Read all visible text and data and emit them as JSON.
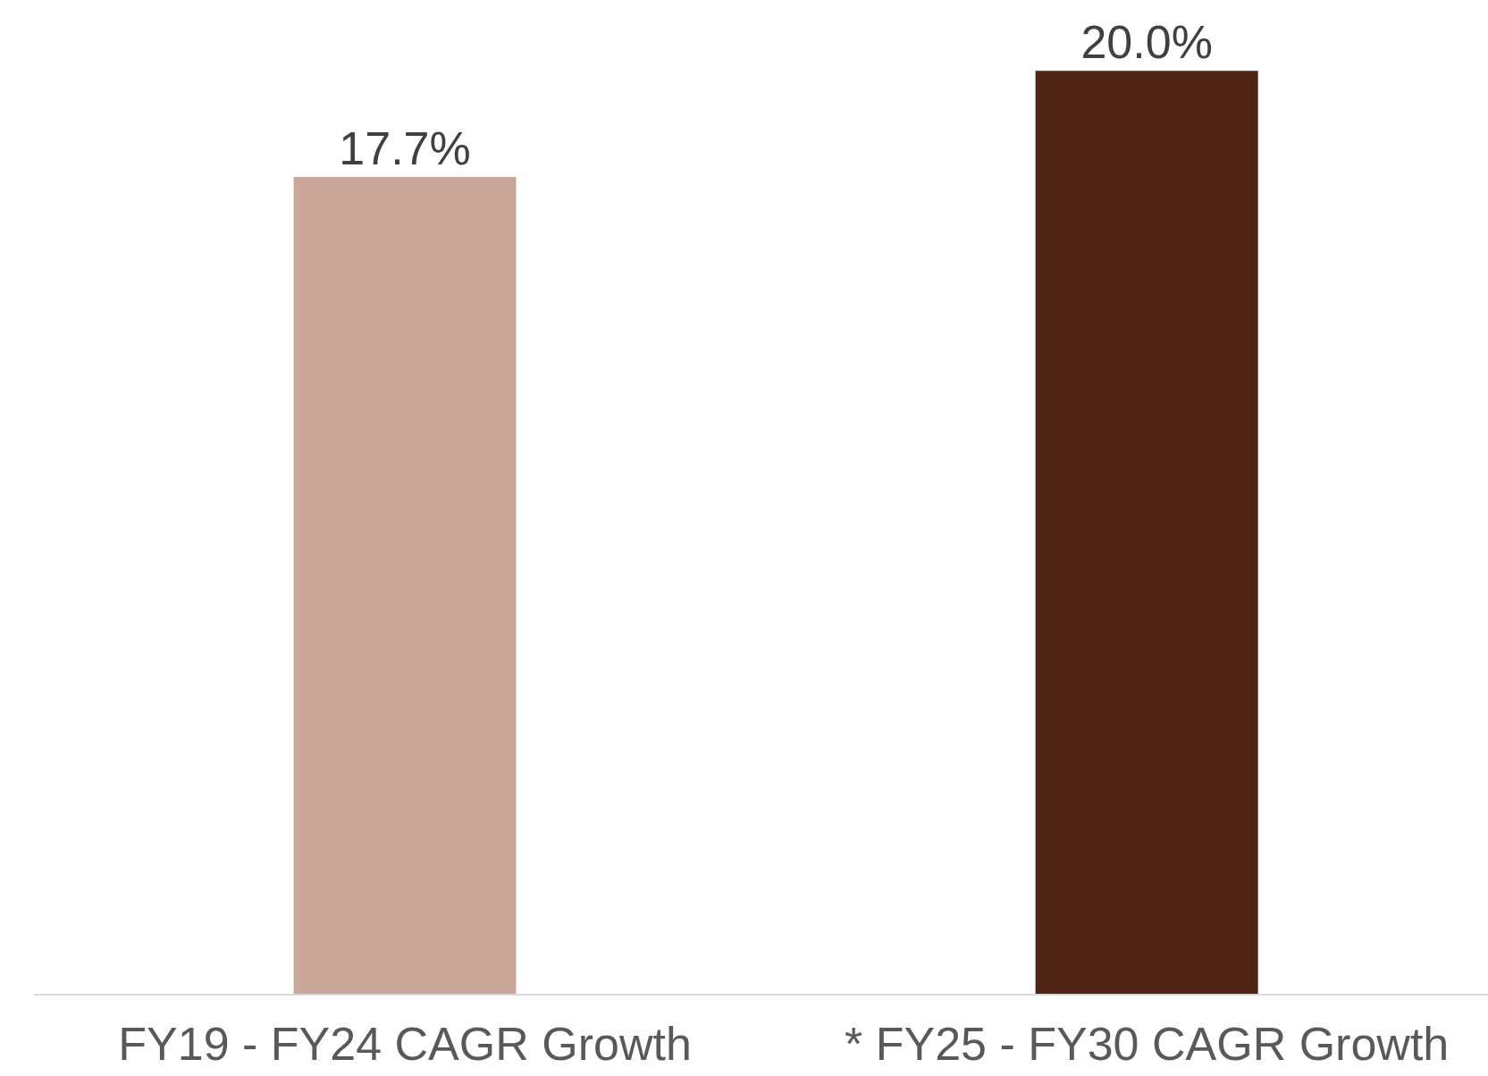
{
  "chart_data": {
    "type": "bar",
    "categories": [
      "FY19 - FY24 CAGR Growth",
      "* FY25 - FY30 CAGR Growth"
    ],
    "values": [
      17.7,
      20.0
    ],
    "colors": [
      "#c9a899",
      "#4e2415"
    ],
    "value_labels": [
      "17.7%",
      "20.0%"
    ]
  }
}
